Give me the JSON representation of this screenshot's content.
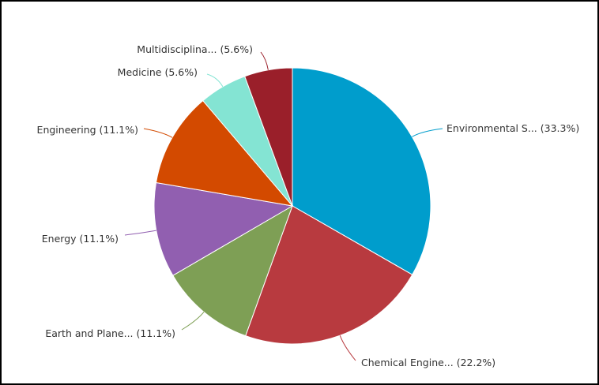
{
  "chart_data": {
    "type": "pie",
    "categories": [
      "Environmental S...",
      "Chemical Engine...",
      "Earth and Plane...",
      "Energy",
      "Engineering",
      "Medicine",
      "Multidisciplina..."
    ],
    "values": [
      33.3,
      22.2,
      11.1,
      11.1,
      11.1,
      5.6,
      5.6
    ],
    "value_labels": [
      "(33.3%)",
      "(22.2%)",
      "(11.1%)",
      "(11.1%)",
      "(11.1%)",
      "(5.6%)",
      "(5.6%)"
    ],
    "colors": [
      "#009dcc",
      "#b83a3f",
      "#7e9f55",
      "#915fb0",
      "#d34a00",
      "#84e4d3",
      "#9a1f2a"
    ]
  }
}
